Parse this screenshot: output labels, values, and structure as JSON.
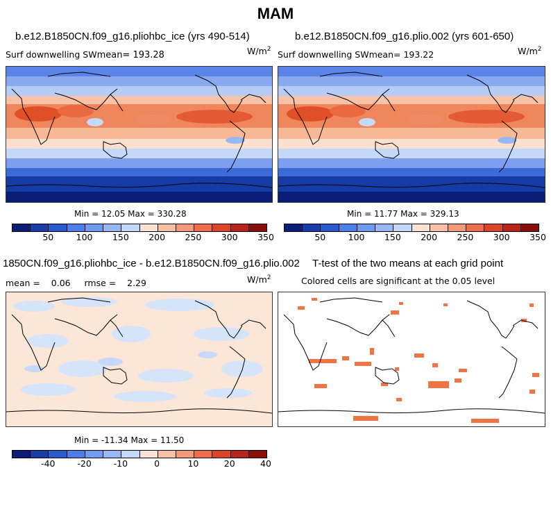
{
  "figure": {
    "season": "MAM"
  },
  "panels": {
    "a": {
      "title": "b.e12.B1850CN.f09_g16.pliohbc_ice (yrs 490-514)",
      "var_label": "Surf downwelling SW",
      "mean_label": "mean=  193.28",
      "units": "W/m",
      "units_exp": "2",
      "minmax": "Min =  12.05 Max = 330.28"
    },
    "b": {
      "title": "b.e12.B1850CN.f09_g16.plio.002 (yrs 601-650)",
      "var_label": "Surf downwelling SW",
      "mean_label": "mean=  193.22",
      "units": "W/m",
      "units_exp": "2",
      "minmax": "Min =  11.77 Max = 329.13"
    },
    "c": {
      "title": "1850CN.f09_g16.pliohbc_ice - b.e12.B1850CN.f09_g16.plio.002",
      "stats": "mean =    0.06     rmse =    2.29",
      "units": "W/m",
      "units_exp": "2",
      "minmax": "Min = -11.34 Max =  11.50"
    },
    "d": {
      "title": "T-test of the two means at each grid point",
      "subtitle": "Colored cells are significant at the 0.05 level"
    }
  },
  "colorbar_top": {
    "colors": [
      "#0a1e78",
      "#1a3ca8",
      "#2a5cd0",
      "#4a7ee8",
      "#6e9cf0",
      "#98b8f4",
      "#c4d8f8",
      "#fbe2d2",
      "#f8c0a4",
      "#f49a78",
      "#ee6e4c",
      "#dc4426",
      "#b82418",
      "#8a0e0a"
    ],
    "ticks": [
      "50",
      "100",
      "150",
      "200",
      "250",
      "300",
      "350"
    ]
  },
  "colorbar_bottom": {
    "colors": [
      "#0a1e78",
      "#1a3ca8",
      "#2a5cd0",
      "#4a7ee8",
      "#6e9cf0",
      "#98b8f4",
      "#c4d8f8",
      "#fbe2d2",
      "#f8c0a4",
      "#f49a78",
      "#ee6e4c",
      "#dc4426",
      "#b82418",
      "#8a0e0a"
    ],
    "ticks": [
      "-40",
      "-20",
      "-10",
      "0",
      "10",
      "20",
      "40"
    ]
  }
}
